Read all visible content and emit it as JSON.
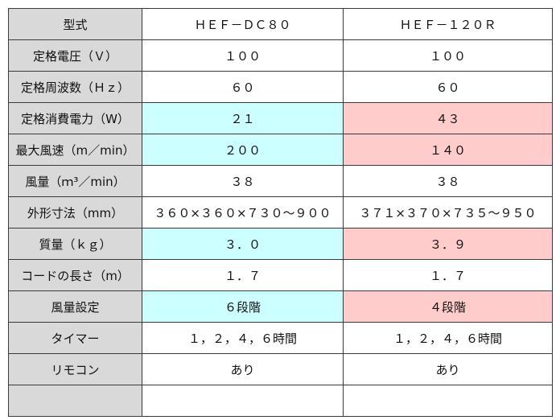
{
  "table": {
    "header": {
      "label": "型式",
      "model1": "ＨＥＦ－ＤＣ８０",
      "model2": "ＨＥＦ－１２０Ｒ"
    },
    "rows": [
      {
        "label": "定格電圧（Ｖ）",
        "model1": "１００",
        "model2": "１００",
        "highlight": false
      },
      {
        "label": "定格周波数（Ｈｚ）",
        "model1": "６０",
        "model2": "６０",
        "highlight": false
      },
      {
        "label": "定格消費電力（W）",
        "model1": "２１",
        "model2": "４３",
        "highlight": true
      },
      {
        "label": "最大風速（m／min）",
        "model1": "２００",
        "model2": "１４０",
        "highlight": true
      },
      {
        "label": "風量（ｍ³／min）",
        "model1": "３８",
        "model2": "３８",
        "highlight": false
      },
      {
        "label": "外形寸法（mm）",
        "model1": "３６０×３６０×７３０～９００",
        "model2": "３７１×３７０×７３５～９５０",
        "highlight": false
      },
      {
        "label": "質量（ｋｇ）",
        "model1": "３．０",
        "model2": "３．９",
        "highlight": true
      },
      {
        "label": "コードの長さ（m）",
        "model1": "１．７",
        "model2": "１．７",
        "highlight": false
      },
      {
        "label": "風量設定",
        "model1": "６段階",
        "model2": "４段階",
        "highlight": true
      },
      {
        "label": "タイマー",
        "model1": "１，２，４，６時間",
        "model2": "１，２，４，６時間",
        "highlight": false
      },
      {
        "label": "リモコン",
        "model1": "あり",
        "model2": "あり",
        "highlight": false
      },
      {
        "label": "",
        "model1": "",
        "model2": "",
        "highlight": false
      }
    ]
  },
  "colors": {
    "label_bg": "#d9d9d9",
    "model1_highlight": "#ccffff",
    "model2_highlight": "#ffcccc",
    "border": "#3a3a3a"
  }
}
